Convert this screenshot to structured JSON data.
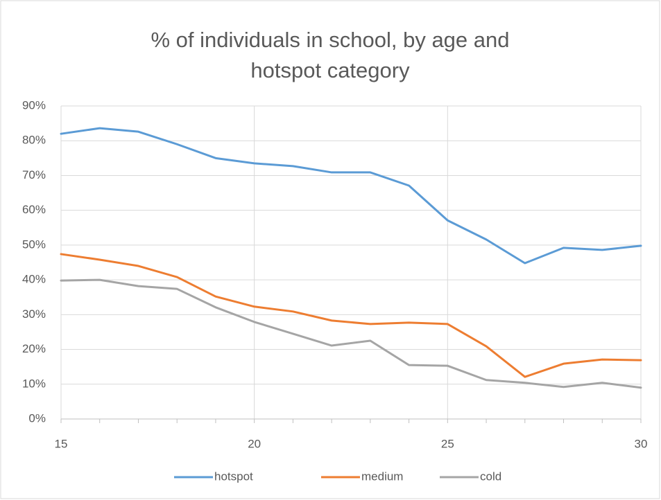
{
  "chart_data": {
    "type": "line",
    "title": "% of individuals in school, by age and hotspot category",
    "x": [
      15,
      16,
      17,
      18,
      19,
      20,
      21,
      22,
      23,
      24,
      25,
      26,
      27,
      28,
      29,
      30
    ],
    "series": [
      {
        "name": "hotspot",
        "color": "#5b9bd5",
        "values": [
          82,
          83.6,
          82.6,
          79,
          75,
          73.5,
          72.7,
          70.9,
          70.9,
          67.1,
          57.1,
          51.6,
          44.8,
          49.2,
          48.6,
          49.8
        ]
      },
      {
        "name": "medium",
        "color": "#ed7d31",
        "values": [
          47.4,
          45.8,
          44,
          40.8,
          35.2,
          32.3,
          30.9,
          28.3,
          27.3,
          27.7,
          27.3,
          20.9,
          12.1,
          15.9,
          17.1,
          16.9
        ]
      },
      {
        "name": "cold",
        "color": "#a5a5a5",
        "values": [
          39.8,
          40,
          38.2,
          37.4,
          32.1,
          27.9,
          24.5,
          21.1,
          22.5,
          15.5,
          15.3,
          11.2,
          10.4,
          9.2,
          10.4,
          9
        ]
      }
    ],
    "xlim": [
      15,
      30
    ],
    "xticks": [
      15,
      20,
      25,
      30
    ],
    "ylim": [
      0,
      90
    ],
    "yticks": [
      {
        "value": 0,
        "label": "0%"
      },
      {
        "value": 10,
        "label": "10%"
      },
      {
        "value": 20,
        "label": "20%"
      },
      {
        "value": 30,
        "label": "30%"
      },
      {
        "value": 40,
        "label": "40%"
      },
      {
        "value": 50,
        "label": "50%"
      },
      {
        "value": 60,
        "label": "60%"
      },
      {
        "value": 70,
        "label": "70%"
      },
      {
        "value": 80,
        "label": "80%"
      },
      {
        "value": 90,
        "label": "90%"
      }
    ],
    "grid": true,
    "legend": "bottom"
  }
}
